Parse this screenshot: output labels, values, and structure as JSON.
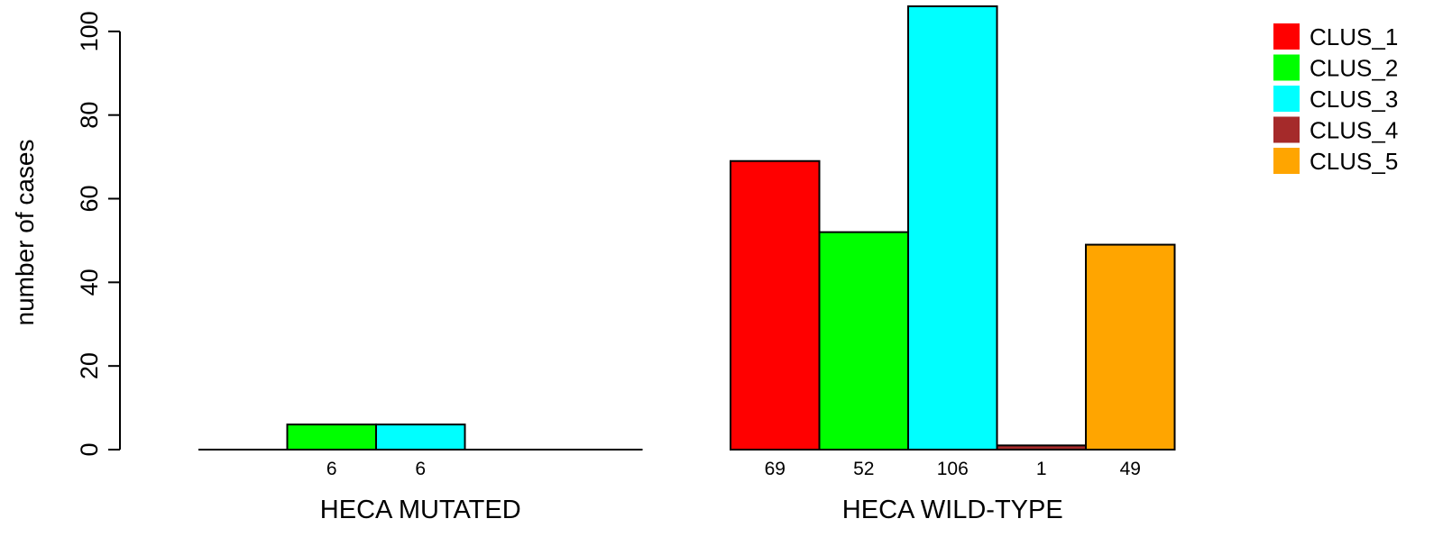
{
  "chart_data": {
    "type": "bar",
    "ylabel": "number of cases",
    "ylim": [
      0,
      106
    ],
    "yticks": [
      0,
      20,
      40,
      60,
      80,
      100
    ],
    "grid": false,
    "legend_position": "top-right",
    "groups": [
      {
        "label": "HECA MUTATED",
        "values": [
          0,
          6,
          6,
          0,
          0
        ],
        "count_labels": [
          "",
          "6",
          "6",
          "",
          ""
        ]
      },
      {
        "label": "HECA WILD-TYPE",
        "values": [
          69,
          52,
          106,
          1,
          49
        ],
        "count_labels": [
          "69",
          "52",
          "106",
          "1",
          "49"
        ]
      }
    ],
    "series": [
      {
        "name": "CLUS_1",
        "color": "#FF0000"
      },
      {
        "name": "CLUS_2",
        "color": "#00FF00"
      },
      {
        "name": "CLUS_3",
        "color": "#00FFFF"
      },
      {
        "name": "CLUS_4",
        "color": "#A52A2A"
      },
      {
        "name": "CLUS_5",
        "color": "#FFA500"
      }
    ]
  }
}
